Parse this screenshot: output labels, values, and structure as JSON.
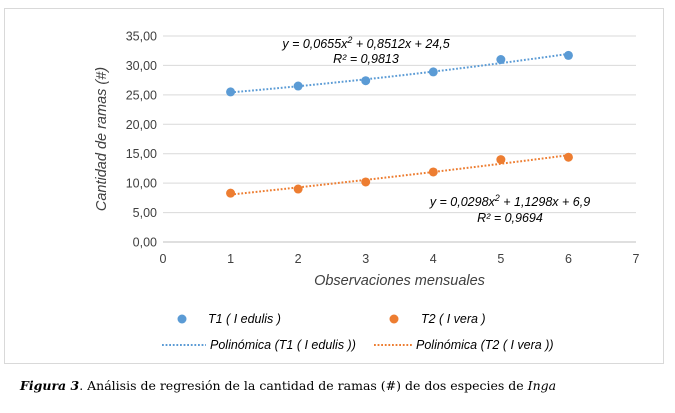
{
  "chart_data": {
    "type": "scatter",
    "xlabel": "Observaciones mensuales",
    "ylabel": "Cantidad de ramas (#)",
    "xlim": [
      0,
      7
    ],
    "ylim": [
      0,
      35
    ],
    "x_ticks": [
      "0",
      "1",
      "2",
      "3",
      "4",
      "5",
      "6",
      "7"
    ],
    "y_ticks": [
      "0,00",
      "5,00",
      "10,00",
      "15,00",
      "20,00",
      "25,00",
      "30,00",
      "35,00"
    ],
    "grid": "horizontal",
    "legend_position": "bottom",
    "series": [
      {
        "name": "T1 ( I edulis )",
        "color": "#5b9bd5",
        "x": [
          1,
          2,
          3,
          4,
          5,
          6
        ],
        "y": [
          25.5,
          26.5,
          27.4,
          28.9,
          31.0,
          31.7
        ],
        "trendline": {
          "name": "Polinómica (T1 ( I edulis ))",
          "coefficients": [
            0.0655,
            0.8512,
            24.5
          ],
          "equation_parts": [
            "y = 0,0655x",
            "2",
            " + 0,8512x + 24,5"
          ],
          "r2_text": "R² = 0,9813"
        }
      },
      {
        "name": "T2 ( I vera )",
        "color": "#ed7d31",
        "x": [
          1,
          2,
          3,
          4,
          5,
          6
        ],
        "y": [
          8.3,
          9.0,
          10.2,
          11.9,
          14.0,
          14.4
        ],
        "trendline": {
          "name": "Polinómica (T2 ( I vera ))",
          "coefficients": [
            0.0298,
            1.1298,
            6.9
          ],
          "equation_parts": [
            "y = 0,0298x",
            "2",
            " + 1,1298x + 6,9"
          ],
          "r2_text": "R² = 0,9694"
        }
      }
    ]
  },
  "caption": {
    "label": "Figura 3",
    "text": ". Análisis de regresión de la cantidad de ramas (#) de dos especies de ",
    "genus": "Inga"
  }
}
